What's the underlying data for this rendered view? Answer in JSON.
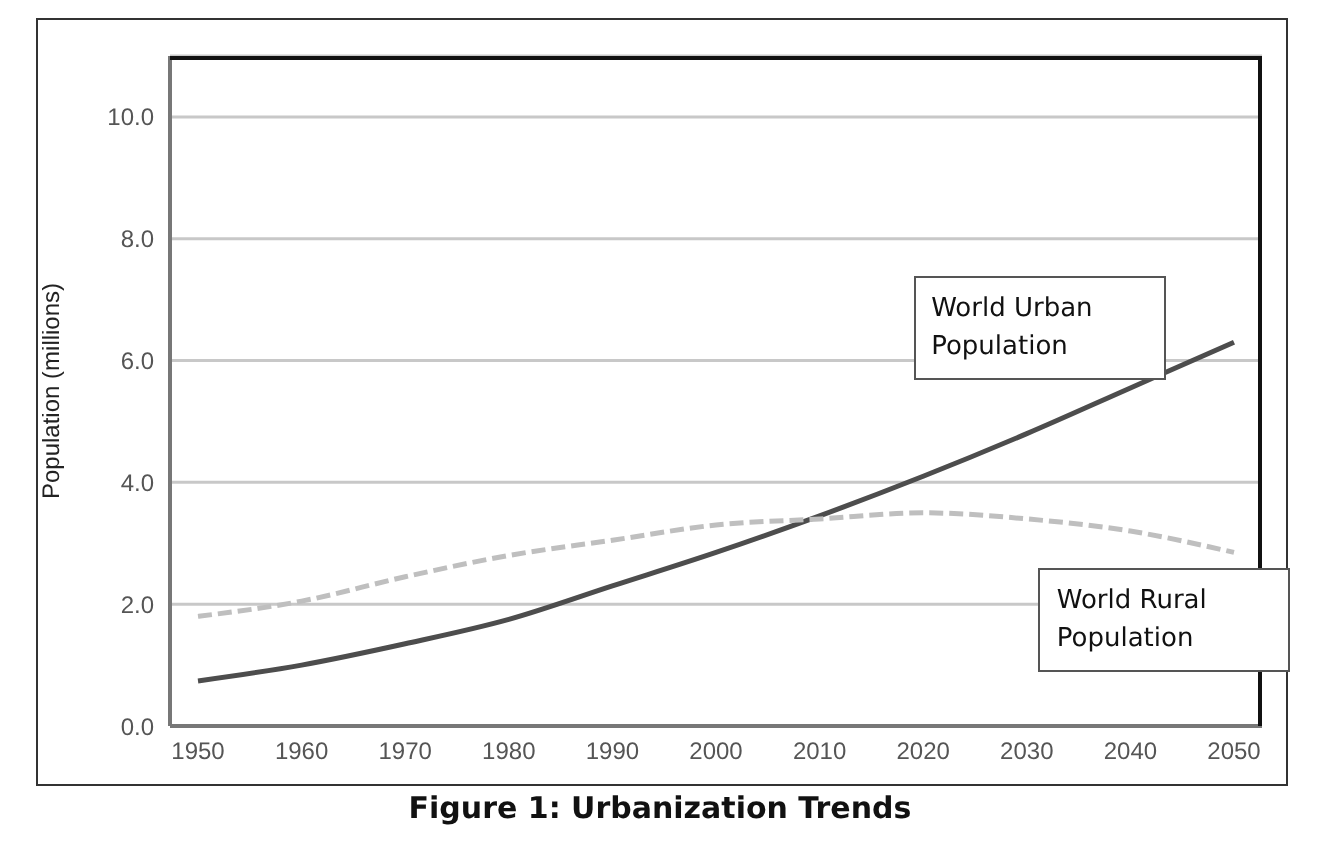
{
  "chart_data": {
    "type": "line",
    "title": "Figure 1: Urbanization Trends",
    "ylabel": "Population (millions)",
    "categories": [
      "1950",
      "1960",
      "1970",
      "1980",
      "1990",
      "2000",
      "2010",
      "2020",
      "2030",
      "2040",
      "2050"
    ],
    "series": [
      {
        "name": "World Urban Population",
        "color": "#4d4d4d",
        "line_style": "solid",
        "values": [
          0.74,
          1.0,
          1.35,
          1.75,
          2.3,
          2.85,
          3.45,
          4.1,
          4.8,
          5.55,
          6.3
        ]
      },
      {
        "name": "World Rural Population",
        "color": "#bfbfbf",
        "line_style": "dashed",
        "values": [
          1.8,
          2.05,
          2.45,
          2.8,
          3.05,
          3.3,
          3.4,
          3.5,
          3.4,
          3.2,
          2.85
        ]
      }
    ],
    "ylim": [
      0,
      11
    ],
    "yticks": [
      {
        "value": 0,
        "label": "0.0"
      },
      {
        "value": 2,
        "label": "2.0"
      },
      {
        "value": 4,
        "label": "4.0"
      },
      {
        "value": 6,
        "label": "6.0"
      },
      {
        "value": 8,
        "label": "8.0"
      },
      {
        "value": 10,
        "label": "10.0"
      }
    ],
    "grid": "y",
    "legend": false,
    "marker": "none"
  }
}
